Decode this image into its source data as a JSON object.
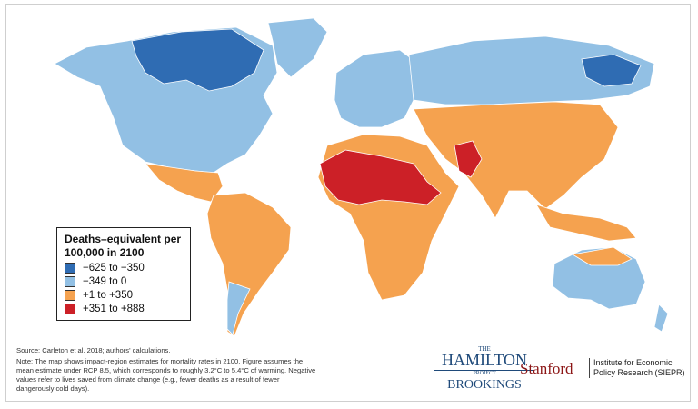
{
  "legend": {
    "title": "Deaths–equivalent per 100,000 in 2100",
    "items": [
      {
        "label": "−625 to −350",
        "color": "#2f6cb3"
      },
      {
        "label": "−349 to 0",
        "color": "#92c0e4"
      },
      {
        "label": "+1 to +350",
        "color": "#f5a24f"
      },
      {
        "label": "+351 to +888",
        "color": "#cc2027"
      }
    ]
  },
  "source": "Source: Carleton et al. 2018; authors' calculations.",
  "note": "Note: The map shows impact-region estimates for mortality rates in 2100. Figure assumes the mean estimate under RCP 8.5, which corresponds to roughly 3.2°C to 5.4°C of warming. Negative values refer to lives saved from climate change (e.g., fewer deaths as a result of fewer dangerously cold days).",
  "logos": {
    "the": "THE",
    "hamilton": "HAMILTON",
    "project": "PROJECT",
    "brookings": "BROOKINGS",
    "stanford": "Stanford",
    "siepr": "Institute for Economic Policy Research (SIEPR)"
  }
}
